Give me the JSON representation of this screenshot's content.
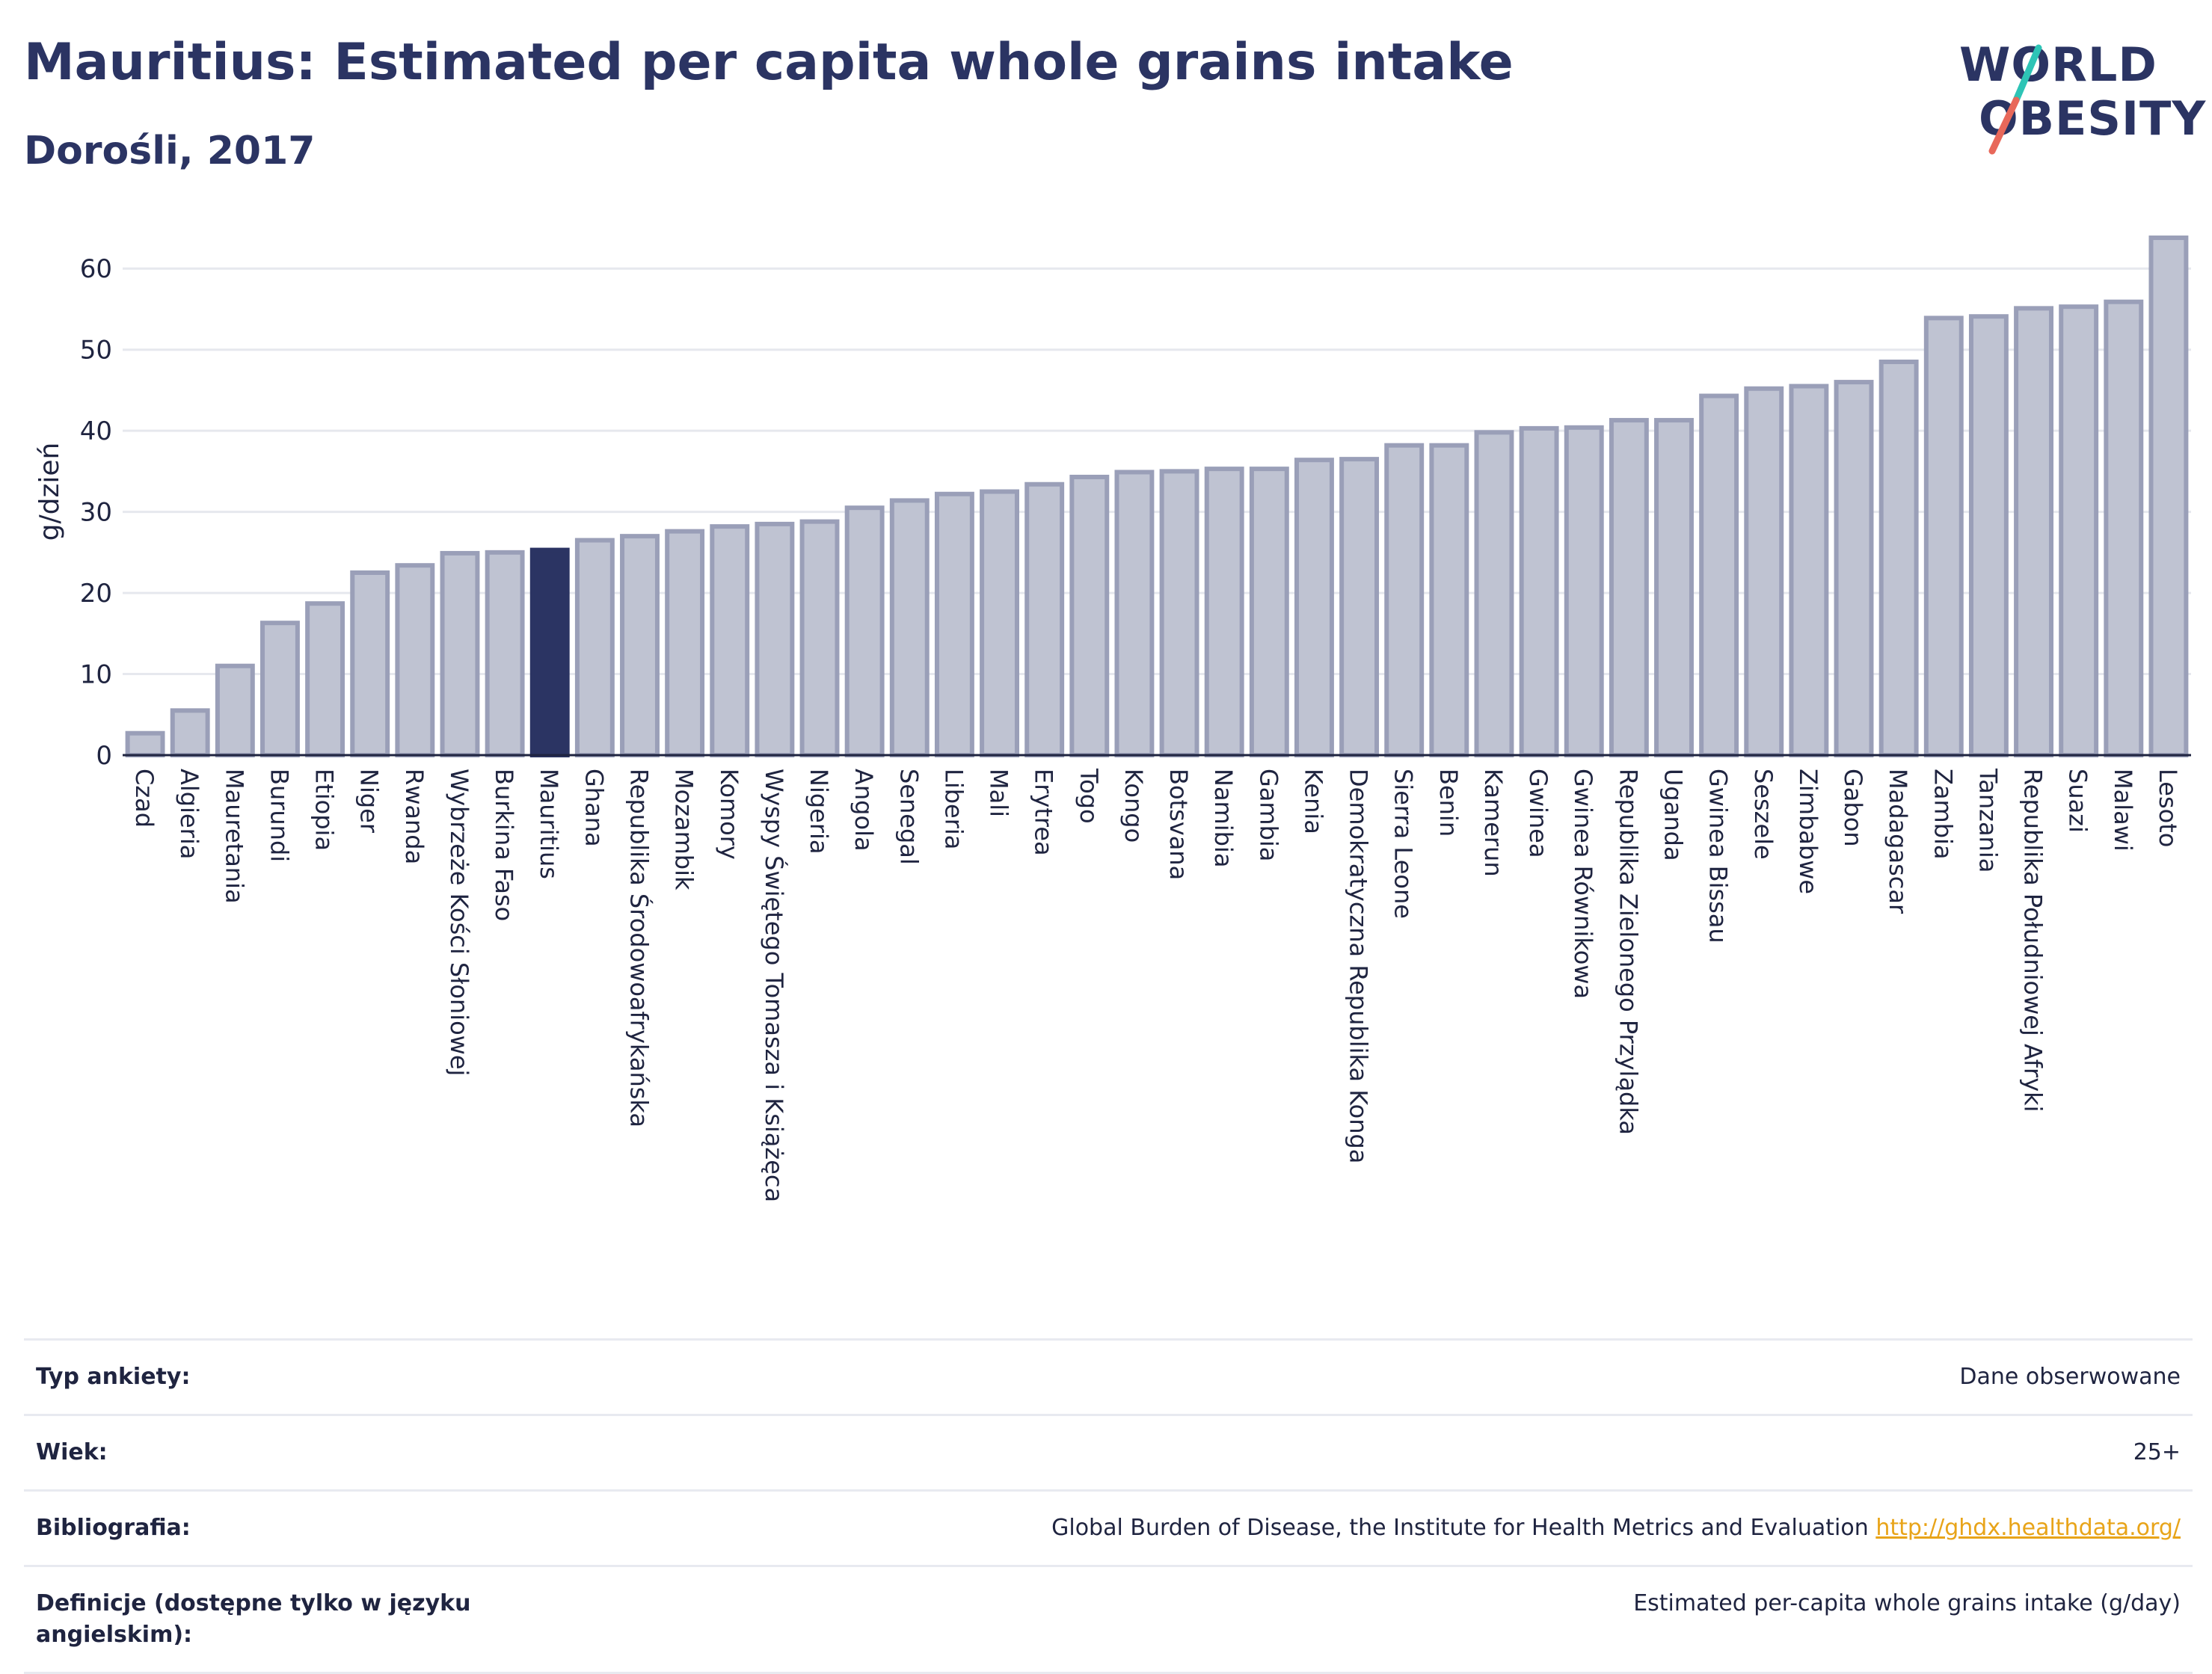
{
  "header": {
    "title": "Mauritius: Estimated per capita whole grains intake",
    "subtitle": "Dorośli, 2017"
  },
  "logo": {
    "line1": "WORLD",
    "line2": "OBESITY",
    "colors": {
      "navy": "#2b3463",
      "teal": "#2ec4b6",
      "coral": "#e8685a"
    }
  },
  "chart_data": {
    "type": "bar",
    "ylabel": "g/dzień",
    "ylim": [
      0,
      65
    ],
    "yticks": [
      0,
      10,
      20,
      30,
      40,
      50,
      60
    ],
    "grid": true,
    "highlight": "Mauritius",
    "colors": {
      "bar": "#bfc3d2",
      "bar_edge": "#9a9fb8",
      "highlight": "#2b3463"
    },
    "categories": [
      "Czad",
      "Algieria",
      "Mauretania",
      "Burundi",
      "Etiopia",
      "Niger",
      "Rwanda",
      "Wybrzeże Kości Słoniowej",
      "Burkina Faso",
      "Mauritius",
      "Ghana",
      "Republika Środowoafrykańska",
      "Mozambik",
      "Komory",
      "Wyspy Świętego Tomasza i Książęca",
      "Nigeria",
      "Angola",
      "Senegal",
      "Liberia",
      "Mali",
      "Erytrea",
      "Togo",
      "Kongo",
      "Botsvana",
      "Namibia",
      "Gambia",
      "Kenia",
      "Demokratyczna Republika Konga",
      "Sierra Leone",
      "Benin",
      "Kamerun",
      "Gwinea",
      "Gwinea Równikowa",
      "Republika Zielonego Przylądka",
      "Uganda",
      "Gwinea Bissau",
      "Seszele",
      "Zimbabwe",
      "Gabon",
      "Madagascar",
      "Zambia",
      "Tanzania",
      "Republika Południowej Afryki",
      "Suazi",
      "Malawi",
      "Lesoto"
    ],
    "values": [
      2.7,
      5.5,
      11,
      16.3,
      18.7,
      22.5,
      23.4,
      24.9,
      25.0,
      25.3,
      26.5,
      27.0,
      27.6,
      28.2,
      28.5,
      28.8,
      30.5,
      31.4,
      32.2,
      32.5,
      33.4,
      34.3,
      34.9,
      35.0,
      35.3,
      35.3,
      36.4,
      36.5,
      38.2,
      38.2,
      39.8,
      40.3,
      40.4,
      41.3,
      41.3,
      44.3,
      45.2,
      45.5,
      46.0,
      48.5,
      53.9,
      54.1,
      55.1,
      55.3,
      55.9,
      63.8
    ]
  },
  "info": [
    {
      "key": "Typ ankiety:",
      "value": "Dane obserwowane"
    },
    {
      "key": "Wiek:",
      "value": "25+"
    },
    {
      "key": "Bibliografia:",
      "value": "Global Burden of Disease, the Institute for Health Metrics and Evaluation",
      "link": "http://ghdx.healthdata.org/"
    },
    {
      "key": "Definicje (dostępne tylko w języku angielskim):",
      "value": "Estimated per-capita whole grains intake (g/day)"
    }
  ]
}
